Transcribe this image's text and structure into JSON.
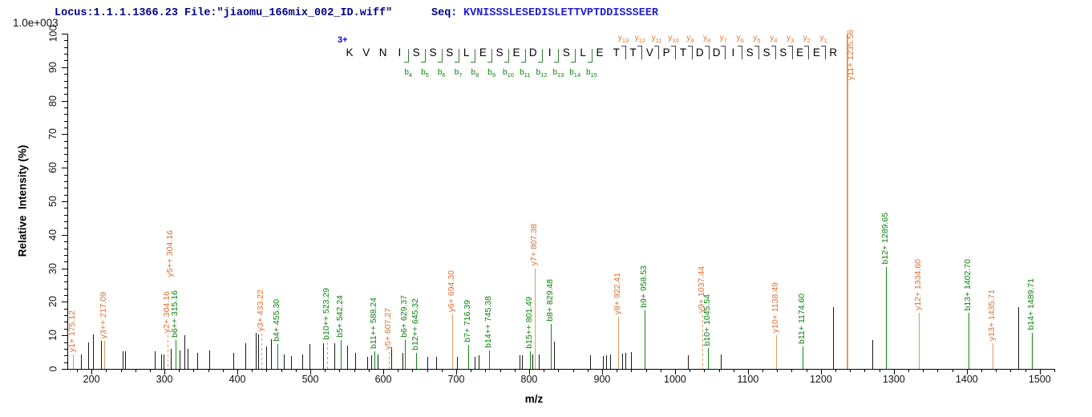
{
  "header": {
    "locus_file": "Locus:1.1.1.1366.23 File:\"jiaomu_166mix_002_ID.wiff\"",
    "seq_label": "Seq:",
    "seq_value": "KVNISSSLESEDISLETTVPTDDISSSEER"
  },
  "colors": {
    "header_navy": "#000080",
    "header_seq_blue": "#2121c8",
    "precursor_blue": "#0000ee",
    "y_ion_text": "#dd7030",
    "y_ion_line": "#e2995e",
    "b_ion_text": "#0c810c",
    "b_ion_line": "#128812",
    "black_peak": "#1a1a1a",
    "axis": "#000000"
  },
  "chart_data": {
    "type": "bar",
    "kind": "ms2-fragmentation-spectrum",
    "title": "",
    "xlabel": "m/z",
    "ylabel": "Relative  Intensity (%)",
    "scale_note": "1.0e+003",
    "xlim": [
      168,
      1520
    ],
    "ylim": [
      0,
      100
    ],
    "x_major_ticks": [
      200,
      300,
      400,
      500,
      600,
      700,
      800,
      900,
      1000,
      1100,
      1200,
      1300,
      1400,
      1500
    ],
    "x_minor_step": 20,
    "y_major_ticks": [
      0,
      10,
      20,
      30,
      40,
      50,
      60,
      70,
      80,
      90,
      100
    ],
    "y_minor_step": 2,
    "grid": false,
    "legend": "none",
    "precursor_charge": "3+",
    "sequence": "KVNISSSLESEDISLETTVPTDDISSSEER",
    "b_ion_series": {
      "first_residue_index": 5,
      "labels": [
        "b4",
        "b5",
        "b6",
        "b7",
        "b8",
        "b9",
        "b10",
        "b11",
        "b12",
        "b13",
        "b14",
        "b15"
      ]
    },
    "y_ion_series": {
      "first_residue_index": 18,
      "labels": [
        "y13",
        "y12",
        "y11",
        "y10",
        "y9",
        "y8",
        "y7",
        "y6",
        "y5",
        "y4",
        "y3",
        "y2",
        "y1"
      ]
    },
    "labeled_peaks": [
      {
        "label": "y1+ 175.12",
        "mz": 175.12,
        "intensity": 4.3,
        "ion": "y",
        "dashed": false
      },
      {
        "label": "y3++ 217.09",
        "mz": 217.09,
        "intensity": 8.3,
        "ion": "y",
        "dashed": false
      },
      {
        "label": "y2+ 304.16",
        "mz": 304.16,
        "intensity": 10,
        "ion": "y",
        "dashed": true
      },
      {
        "label": "y5++ 304.16",
        "mz": 308.5,
        "intensity": 0,
        "ion": "y",
        "dashed": false,
        "label_only": true,
        "label_bottom_pct": 27.5
      },
      {
        "label": "b6++ 315.16",
        "mz": 315.16,
        "intensity": 8.6,
        "ion": "b",
        "dashed": false
      },
      {
        "label": "y3+ 433.22",
        "mz": 433.22,
        "intensity": 10.5,
        "ion": "y",
        "dashed": true
      },
      {
        "label": "b4+ 455.30",
        "mz": 455.3,
        "intensity": 7.5,
        "ion": "b",
        "dashed": false
      },
      {
        "label": "b10++ 523.29",
        "mz": 523.29,
        "intensity": 8.0,
        "ion": "b",
        "dashed": true,
        "line_ion": "y"
      },
      {
        "label": "b5+ 542.24",
        "mz": 542.24,
        "intensity": 8.6,
        "ion": "b",
        "dashed": false
      },
      {
        "label": "b11++ 588.24",
        "mz": 588.24,
        "intensity": 5.2,
        "ion": "b",
        "dashed": false
      },
      {
        "label": "y5+ 607.27",
        "mz": 607.27,
        "intensity": 5.0,
        "ion": "y",
        "dashed": true
      },
      {
        "label": "b6+ 629.37",
        "mz": 629.37,
        "intensity": 8.6,
        "ion": "b",
        "dashed": false
      },
      {
        "label": "b12++ 645.32",
        "mz": 645.32,
        "intensity": 4.8,
        "ion": "b",
        "dashed": false
      },
      {
        "label": "y6+ 694.30",
        "mz": 694.3,
        "intensity": 16.3,
        "ion": "y",
        "dashed": false
      },
      {
        "label": "b7+ 716.39",
        "mz": 716.39,
        "intensity": 7.2,
        "ion": "b",
        "dashed": false
      },
      {
        "label": "b14++ 745.38",
        "mz": 745.38,
        "intensity": 5.6,
        "ion": "b",
        "dashed": false
      },
      {
        "label": "b15++ 801.49",
        "mz": 801.49,
        "intensity": 5.2,
        "ion": "b",
        "dashed": false
      },
      {
        "label": "y7+ 807.38",
        "mz": 807.38,
        "intensity": 30,
        "ion": "y",
        "dashed": false
      },
      {
        "label": "b8+ 829.48",
        "mz": 829.48,
        "intensity": 13.5,
        "ion": "b",
        "dashed": false
      },
      {
        "label": "y8+ 922.41",
        "mz": 922.41,
        "intensity": 15.5,
        "ion": "y",
        "dashed": false
      },
      {
        "label": "b9+ 958.53",
        "mz": 958.53,
        "intensity": 17.5,
        "ion": "b",
        "dashed": false
      },
      {
        "label": "y9+ 1037.44",
        "mz": 1037.44,
        "intensity": 16,
        "ion": "y",
        "dashed": true
      },
      {
        "label": "b10+ 1045.54",
        "mz": 1045.54,
        "intensity": 6.2,
        "ion": "b",
        "dashed": false
      },
      {
        "label": "y10+ 1138.49",
        "mz": 1138.49,
        "intensity": 10,
        "ion": "y",
        "dashed": false
      },
      {
        "label": "b11+ 1174.60",
        "mz": 1174.6,
        "intensity": 6.8,
        "ion": "b",
        "dashed": false
      },
      {
        "label": "y11+ 1235.56",
        "mz": 1235.56,
        "intensity": 100,
        "ion": "y",
        "dashed": false,
        "label_bottom_pct": 86,
        "label_dx": 6,
        "w": 1.5
      },
      {
        "label": "b12+ 1289.65",
        "mz": 1289.65,
        "intensity": 30.4,
        "ion": "b",
        "dashed": false
      },
      {
        "label": "y12+ 1334.60",
        "mz": 1334.6,
        "intensity": 16.7,
        "ion": "y",
        "dashed": false
      },
      {
        "label": "b13+ 1402.70",
        "mz": 1402.7,
        "intensity": 16.7,
        "ion": "b",
        "dashed": false
      },
      {
        "label": "y13+ 1435.71",
        "mz": 1435.71,
        "intensity": 7.6,
        "ion": "y",
        "dashed": false
      },
      {
        "label": "b14+ 1489.71",
        "mz": 1489.71,
        "intensity": 10.8,
        "ion": "b",
        "dashed": false
      }
    ],
    "unlabeled_peaks": [
      [
        186,
        4.3
      ],
      [
        195,
        7.8
      ],
      [
        202,
        10.3
      ],
      [
        213,
        8.4
      ],
      [
        243,
        5.3
      ],
      [
        246,
        5.3
      ],
      [
        287,
        5.2
      ],
      [
        295,
        4.4
      ],
      [
        299,
        4.4
      ],
      [
        309,
        6.0
      ],
      [
        321,
        5.6
      ],
      [
        327,
        10.0
      ],
      [
        332,
        6.0
      ],
      [
        345,
        4.8
      ],
      [
        361,
        5.6
      ],
      [
        394,
        4.8
      ],
      [
        411,
        7.6
      ],
      [
        425,
        10.8
      ],
      [
        429,
        10.3
      ],
      [
        440,
        6.8
      ],
      [
        446,
        8.8
      ],
      [
        464,
        4.2
      ],
      [
        474,
        3.8
      ],
      [
        489,
        4.2
      ],
      [
        499,
        7.4
      ],
      [
        518,
        7.6
      ],
      [
        533,
        7.6
      ],
      [
        550,
        7.0
      ],
      [
        562,
        4.8
      ],
      [
        578,
        3.6
      ],
      [
        583,
        4.0
      ],
      [
        592,
        4.2
      ],
      [
        611,
        6.4
      ],
      [
        626,
        4.8
      ],
      [
        660,
        3.6
      ],
      [
        672,
        3.6
      ],
      [
        701,
        3.6
      ],
      [
        725,
        3.6
      ],
      [
        731,
        4.0
      ],
      [
        787,
        4.0
      ],
      [
        790,
        4.0
      ],
      [
        804,
        4.2
      ],
      [
        813,
        4.2
      ],
      [
        834,
        8.2
      ],
      [
        884,
        4.0
      ],
      [
        901,
        3.8
      ],
      [
        906,
        4.0
      ],
      [
        911,
        4.4
      ],
      [
        928,
        4.6
      ],
      [
        932,
        4.8
      ],
      [
        940,
        5.0
      ],
      [
        1018,
        4.0
      ],
      [
        1063,
        4.4
      ],
      [
        1217,
        18.5
      ],
      [
        1271,
        8.5
      ],
      [
        1471,
        18.5
      ]
    ]
  }
}
